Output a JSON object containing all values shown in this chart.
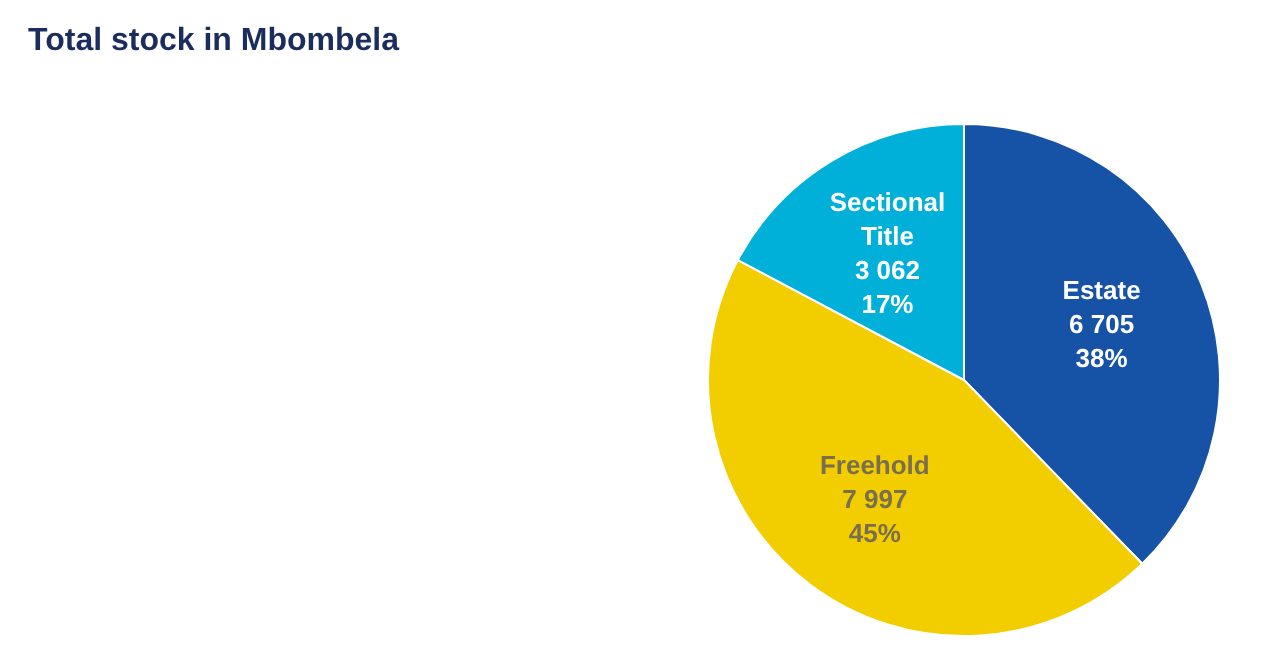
{
  "chart_data": {
    "type": "pie",
    "title": "Total stock in Mbombela",
    "categories": [
      "Estate",
      "Freehold",
      "Sectional Title"
    ],
    "values": [
      6705,
      7997,
      3062
    ],
    "colors": [
      "#1652a6",
      "#f2cd00",
      "#00b0d8"
    ],
    "value_labels": [
      "6 705\n38%",
      "7 997\n45%",
      "3 062\n17%"
    ]
  }
}
